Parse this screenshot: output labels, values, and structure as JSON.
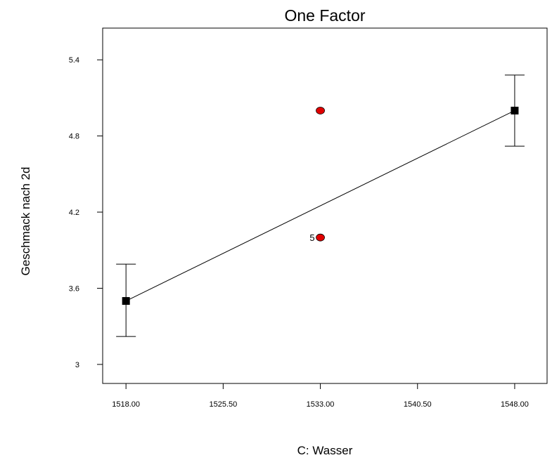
{
  "chart_data": {
    "type": "line",
    "title": "One Factor",
    "xlabel": "C: Wasser",
    "ylabel": "Geschmack nach 2d",
    "xlim": [
      1516.2,
      1550.5
    ],
    "ylim": [
      2.85,
      5.65
    ],
    "x_ticks": [
      1518.0,
      1525.5,
      1533.0,
      1540.5,
      1548.0
    ],
    "x_tick_labels": [
      "1518.00",
      "1525.50",
      "1533.00",
      "1540.50",
      "1548.00"
    ],
    "y_ticks": [
      3.0,
      3.6,
      4.2,
      4.8,
      5.4
    ],
    "y_tick_labels": [
      "3",
      "3.6",
      "4.2",
      "4.8",
      "5.4"
    ],
    "grid": false,
    "series": [
      {
        "x": [
          1518.0,
          1548.0
        ],
        "y": [
          3.5,
          5.0
        ],
        "marker": "square",
        "color": "#000000",
        "error_bars": [
          {
            "x": 1518.0,
            "low": 3.22,
            "high": 3.79
          },
          {
            "x": 1548.0,
            "low": 4.72,
            "high": 5.28
          }
        ]
      },
      {
        "type": "scatter",
        "x": [
          1533.0,
          1533.0
        ],
        "y": [
          5.0,
          4.0
        ],
        "marker": "circle",
        "color": "#e00000",
        "point_labels": [
          "",
          "5"
        ]
      }
    ]
  }
}
